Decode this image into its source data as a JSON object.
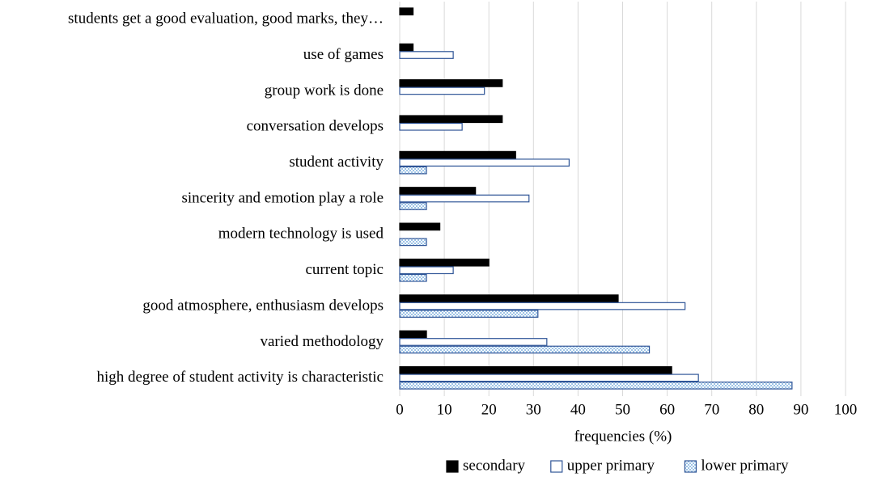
{
  "chart_data": {
    "type": "barh",
    "xlabel": "frequencies (%)",
    "categories": [
      "students get a good evaluation, good marks, they…",
      "use of games",
      "group work is done",
      "conversation develops",
      "student activity",
      "sincerity and emotion play a role",
      "modern technology is used",
      "current topic",
      "good atmosphere, enthusiasm develops",
      "varied methodology",
      "high degree of student activity is characteristic"
    ],
    "series": [
      {
        "name": "secondary",
        "color": "#000000",
        "edgecolor": "#000000",
        "hatch": false,
        "values": [
          3,
          3,
          23,
          23,
          26,
          17,
          9,
          20,
          49,
          6,
          61
        ]
      },
      {
        "name": "upper primary",
        "color": "#ffffff",
        "edgecolor": "#2f5597",
        "hatch": false,
        "values": [
          0,
          12,
          19,
          14,
          38,
          29,
          0,
          12,
          64,
          33,
          67
        ]
      },
      {
        "name": "lower primary",
        "color": "#9dc3e6",
        "edgecolor": "#2f5597",
        "hatch": true,
        "values": [
          0,
          0,
          0,
          0,
          6,
          6,
          6,
          6,
          31,
          56,
          88
        ]
      }
    ],
    "xlim": [
      0,
      100
    ],
    "xticks": [
      0,
      10,
      20,
      30,
      40,
      50,
      60,
      70,
      80,
      90,
      100
    ],
    "grid": true,
    "legend": "bottom"
  }
}
